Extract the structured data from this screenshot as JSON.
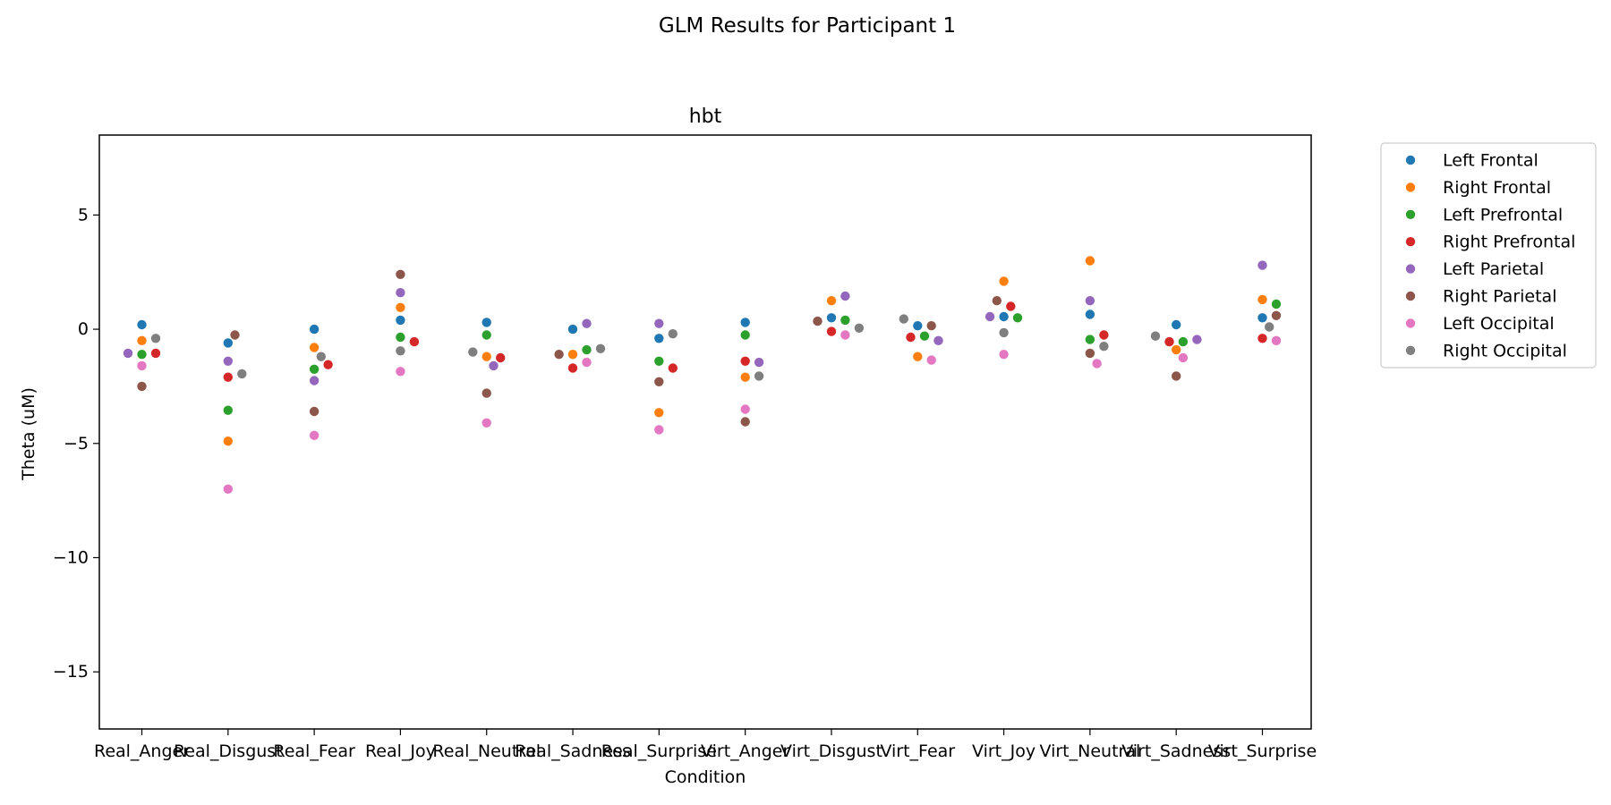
{
  "figure": {
    "suptitle": "GLM Results for Participant 1"
  },
  "chart_data": {
    "type": "scatter",
    "title": "hbt",
    "xlabel": "Condition",
    "ylabel": "Theta (uM)",
    "ylim": [
      -17.5,
      8.5
    ],
    "yticks": [
      5,
      0,
      -5,
      -10,
      -15
    ],
    "ytick_labels": [
      "5",
      "0",
      "−5",
      "−10",
      "−15"
    ],
    "grid": false,
    "legend_position": "outside-right",
    "categories": [
      "Real_Anger",
      "Real_Disgust",
      "Real_Fear",
      "Real_Joy",
      "Real_Neutral",
      "Real_Sadness",
      "Real_Surprise",
      "Virt_Anger",
      "Virt_Disgust",
      "Virt_Fear",
      "Virt_Joy",
      "Virt_Neutral",
      "Virt_Sadness",
      "Virt_Surprise"
    ],
    "series": [
      {
        "name": "Left Frontal",
        "color": "#1f77b4",
        "values": [
          0.2,
          -0.6,
          0.0,
          0.4,
          0.3,
          0.0,
          -0.4,
          0.3,
          0.5,
          0.15,
          0.55,
          0.65,
          0.2,
          0.5
        ]
      },
      {
        "name": "Right Frontal",
        "color": "#ff7f0e",
        "values": [
          -0.5,
          -4.9,
          -0.8,
          0.95,
          -1.2,
          -1.1,
          -3.65,
          -2.1,
          1.25,
          -1.2,
          2.1,
          3.0,
          -0.9,
          1.3
        ]
      },
      {
        "name": "Left Prefrontal",
        "color": "#2ca02c",
        "values": [
          -1.1,
          -3.55,
          -1.75,
          -0.35,
          -0.25,
          -0.9,
          -1.4,
          -0.25,
          0.4,
          -0.3,
          0.5,
          -0.45,
          -0.55,
          1.1
        ]
      },
      {
        "name": "Right Prefrontal",
        "color": "#d62728",
        "values": [
          -1.05,
          -2.1,
          -1.55,
          -0.55,
          -1.25,
          -1.7,
          -1.7,
          -1.4,
          -0.1,
          -0.35,
          1.0,
          -0.25,
          -0.55,
          -0.4
        ]
      },
      {
        "name": "Left Parietal",
        "color": "#9467bd",
        "values": [
          -1.05,
          -1.4,
          -2.25,
          1.6,
          -1.6,
          0.25,
          0.25,
          -1.45,
          1.45,
          -0.5,
          0.55,
          1.25,
          -0.45,
          2.8
        ]
      },
      {
        "name": "Right Parietal",
        "color": "#8c564b",
        "values": [
          -2.5,
          -0.25,
          -3.6,
          2.4,
          -2.8,
          -1.1,
          -2.3,
          -4.05,
          0.35,
          0.15,
          1.25,
          -1.05,
          -2.05,
          0.6
        ]
      },
      {
        "name": "Left Occipital",
        "color": "#e377c2",
        "values": [
          -1.6,
          -7.0,
          -4.65,
          -1.85,
          -4.1,
          -1.45,
          -4.4,
          -3.5,
          -0.25,
          -1.35,
          -1.1,
          -1.5,
          -1.25,
          -0.5
        ]
      },
      {
        "name": "Right Occipital",
        "color": "#7f7f7f",
        "values": [
          -0.4,
          -1.95,
          -1.2,
          -0.95,
          -1.0,
          -0.85,
          -0.2,
          -2.05,
          0.05,
          0.45,
          -0.15,
          -0.75,
          -0.3,
          0.1
        ]
      }
    ]
  }
}
